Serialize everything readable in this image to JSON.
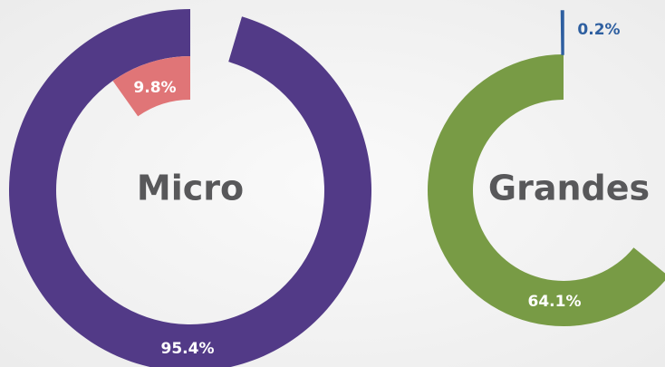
{
  "chart_data": [
    {
      "type": "radial",
      "title": "Micro",
      "values": [
        95.4,
        9.8
      ],
      "value_labels": [
        "95.4%",
        "9.8%"
      ],
      "colors": [
        "#523a87",
        "#e07577"
      ],
      "ylim": [
        0,
        100
      ]
    },
    {
      "type": "radial",
      "title": "Grandes",
      "values": [
        64.1,
        0.2
      ],
      "value_labels": [
        "64.1%",
        "0.2%"
      ],
      "colors": [
        "#789b45",
        "#2e5fa0"
      ],
      "ylim": [
        0,
        100
      ]
    }
  ]
}
